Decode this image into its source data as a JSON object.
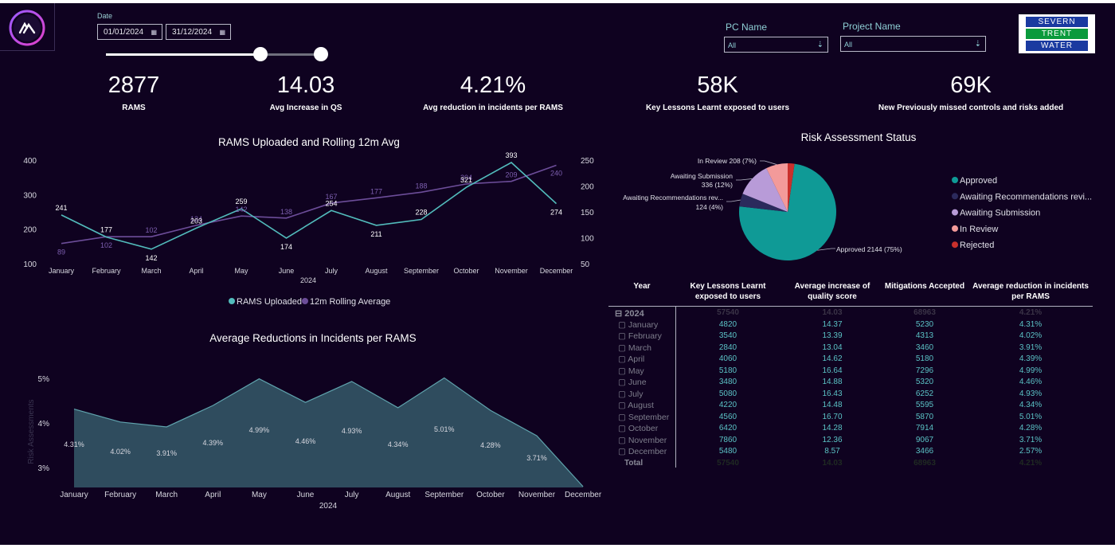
{
  "filters": {
    "date_label": "Date",
    "date_start": "01/01/2024",
    "date_end": "31/12/2024",
    "date_range_position": [
      0.72,
      1.0
    ],
    "pc_name_label": "PC Name",
    "pc_name_value": "All",
    "project_name_label": "Project Name",
    "project_name_value": "All"
  },
  "brand": {
    "line1": "SEVERN",
    "line2": "TRENT",
    "line3": "WATER",
    "colors": {
      "blue": "#1a3aa0",
      "green": "#0a9a3c"
    }
  },
  "kpis": [
    {
      "value": "2877",
      "label": "RAMS"
    },
    {
      "value": "14.03",
      "label": "Avg Increase in QS"
    },
    {
      "value": "4.21%",
      "label": "Avg reduction in incidents per RAMS"
    },
    {
      "value": "58K",
      "label": "Key Lessons Learnt exposed to users"
    },
    {
      "value": "69K",
      "label": "New Previously missed controls and risks added"
    }
  ],
  "colors": {
    "teal": "#52bcbc",
    "purple": "#6c4d99",
    "pie_approved": "#0f9a96",
    "pie_awaiting_rec": "#2b2a5c",
    "pie_awaiting_sub": "#b89bd8",
    "pie_in_review": "#f39a9a",
    "pie_rejected": "#c9302c",
    "area_fill": "#2f4c5e"
  },
  "chart_data": [
    {
      "type": "line",
      "title": "RAMS Uploaded and Rolling 12m Avg",
      "categories": [
        "January",
        "February",
        "March",
        "April",
        "May",
        "June",
        "July",
        "August",
        "September",
        "October",
        "November",
        "December"
      ],
      "xlabel": "2024",
      "series": [
        {
          "name": "RAMS Uploaded",
          "axis": "left",
          "values": [
            241,
            177,
            142,
            203,
            259,
            174,
            254,
            211,
            228,
            321,
            393,
            274
          ]
        },
        {
          "name": "12m Rolling Average",
          "axis": "right",
          "values": [
            89,
            102,
            102,
            124,
            142,
            138,
            167,
            177,
            188,
            204,
            209,
            240
          ]
        }
      ],
      "ylim_left": [
        100,
        400
      ],
      "yticks_left": [
        "400",
        "300",
        "200",
        "100"
      ],
      "ylim_right": [
        50,
        250
      ],
      "yticks_right": [
        "250",
        "200",
        "150",
        "100",
        "50"
      ],
      "legend": [
        "RAMS Uploaded",
        "12m Rolling Average"
      ]
    },
    {
      "type": "pie",
      "title": "Risk Assessment Status",
      "slices": [
        {
          "name": "Approved",
          "value": 2144,
          "label": "Approved 2144 (75%)"
        },
        {
          "name": "Awaiting Recommendations revi...",
          "value": 124,
          "label1": "Awaiting Recommendations rev...",
          "label2": "124 (4%)"
        },
        {
          "name": "Awaiting Submission",
          "value": 336,
          "label1": "Awaiting Submission",
          "label2": "336 (12%)"
        },
        {
          "name": "In Review",
          "value": 208,
          "label": "In Review 208 (7%)"
        },
        {
          "name": "Rejected",
          "value": 65
        }
      ],
      "legend": [
        "Approved",
        "Awaiting Recommendations revi...",
        "Awaiting Submission",
        "In Review",
        "Rejected"
      ]
    },
    {
      "type": "area",
      "title": "Average Reductions in Incidents per RAMS",
      "categories": [
        "January",
        "February",
        "March",
        "April",
        "May",
        "June",
        "July",
        "August",
        "September",
        "October",
        "November",
        "December"
      ],
      "values": [
        4.31,
        4.02,
        3.91,
        4.39,
        4.99,
        4.46,
        4.93,
        4.34,
        5.01,
        4.28,
        3.71,
        2.57
      ],
      "labels": [
        "4.31%",
        "4.02%",
        "3.91%",
        "4.39%",
        "4.99%",
        "4.46%",
        "4.93%",
        "4.34%",
        "5.01%",
        "4.28%",
        "3.71%",
        ""
      ],
      "xlabel": "2024",
      "ylabel": "Risk Assessments",
      "ylim": [
        2.55,
        5.0
      ],
      "yticks": [
        {
          "v": 5,
          "t": "5%"
        },
        {
          "v": 4,
          "t": "4%"
        },
        {
          "v": 3,
          "t": "3%"
        }
      ]
    },
    {
      "type": "table",
      "headers": [
        "Year",
        "Key Lessons Learnt exposed to users",
        "Average increase of quality score",
        "Mitigations Accepted",
        "Average reduction in incidents per RAMS"
      ],
      "year_row": {
        "label": "2024",
        "kl": "57540",
        "aq": "14.03",
        "ma": "68963",
        "ar": "4.21%"
      },
      "rows": [
        {
          "m": "January",
          "kl": "4820",
          "aq": "14.37",
          "ma": "5230",
          "ar": "4.31%"
        },
        {
          "m": "February",
          "kl": "3540",
          "aq": "13.39",
          "ma": "4313",
          "ar": "4.02%"
        },
        {
          "m": "March",
          "kl": "2840",
          "aq": "13.04",
          "ma": "3460",
          "ar": "3.91%"
        },
        {
          "m": "April",
          "kl": "4060",
          "aq": "14.62",
          "ma": "5180",
          "ar": "4.39%"
        },
        {
          "m": "May",
          "kl": "5180",
          "aq": "16.64",
          "ma": "7296",
          "ar": "4.99%"
        },
        {
          "m": "June",
          "kl": "3480",
          "aq": "14.88",
          "ma": "5320",
          "ar": "4.46%"
        },
        {
          "m": "July",
          "kl": "5080",
          "aq": "16.43",
          "ma": "6252",
          "ar": "4.93%"
        },
        {
          "m": "August",
          "kl": "4220",
          "aq": "14.48",
          "ma": "5595",
          "ar": "4.34%"
        },
        {
          "m": "September",
          "kl": "4560",
          "aq": "16.70",
          "ma": "5870",
          "ar": "5.01%"
        },
        {
          "m": "October",
          "kl": "6420",
          "aq": "14.28",
          "ma": "7914",
          "ar": "4.28%"
        },
        {
          "m": "November",
          "kl": "7860",
          "aq": "12.36",
          "ma": "9067",
          "ar": "3.71%"
        },
        {
          "m": "December",
          "kl": "5480",
          "aq": "8.57",
          "ma": "3466",
          "ar": "2.57%"
        }
      ],
      "total_row": {
        "label": "Total",
        "kl": "57540",
        "aq": "14.03",
        "ma": "68963",
        "ar": "4.21%"
      }
    }
  ]
}
